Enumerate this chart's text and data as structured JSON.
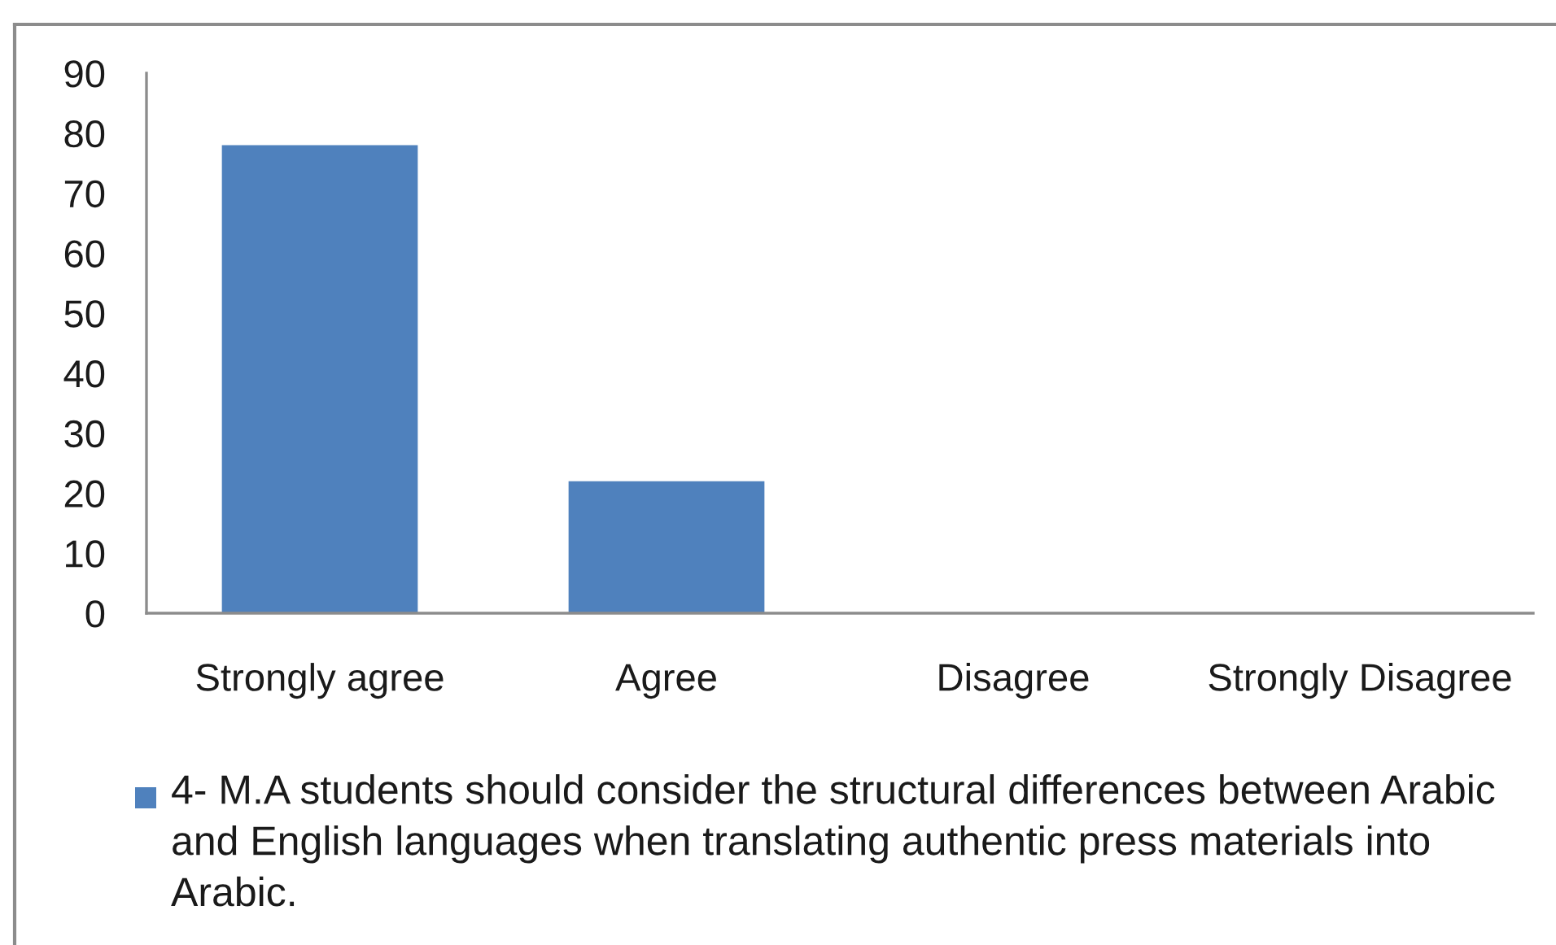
{
  "chart_data": {
    "type": "bar",
    "categories": [
      "Strongly agree",
      "Agree",
      "Disagree",
      "Strongly Disagree"
    ],
    "series": [
      {
        "name": "4- M.A students should consider the structural differences between Arabic and English languages when translating authentic press materials into Arabic.",
        "color": "#4f81bd",
        "values": [
          78,
          22,
          0,
          0
        ]
      }
    ],
    "ylim": [
      0,
      90
    ],
    "yticks": [
      0,
      10,
      20,
      30,
      40,
      50,
      60,
      70,
      80,
      90
    ],
    "legend": "bottom"
  }
}
